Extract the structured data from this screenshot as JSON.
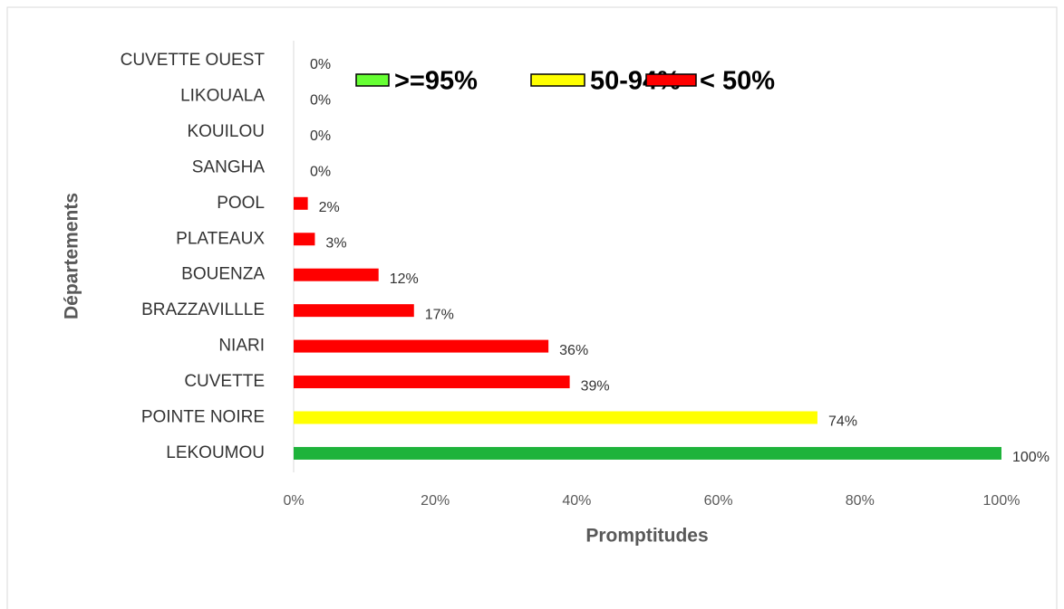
{
  "chart_data": {
    "type": "hbar",
    "categories": [
      "CUVETTE OUEST",
      "LIKOUALA",
      "KOUILOU",
      "SANGHA",
      "POOL",
      "PLATEAUX",
      "BOUENZA",
      "BRAZZAVILLLE",
      "NIARI",
      "CUVETTE",
      "POINTE NOIRE",
      "LEKOUMOU"
    ],
    "values": [
      0,
      0,
      0,
      0,
      2,
      3,
      12,
      17,
      36,
      39,
      74,
      100
    ],
    "value_labels": [
      "0%",
      "0%",
      "0%",
      "0%",
      "2%",
      "3%",
      "12%",
      "17%",
      "36%",
      "39%",
      "74%",
      "100%"
    ],
    "colors": [
      "#ff0000",
      "#ff0000",
      "#ff0000",
      "#ff0000",
      "#ff0000",
      "#ff0000",
      "#ff0000",
      "#ff0000",
      "#ff0000",
      "#ff0000",
      "#ffff00",
      "#1eb33b"
    ],
    "xlim": [
      0,
      100
    ],
    "xticks": [
      {
        "value": 0,
        "label": "0%"
      },
      {
        "value": 20,
        "label": "20%"
      },
      {
        "value": 40,
        "label": "40%"
      },
      {
        "value": 60,
        "label": "60%"
      },
      {
        "value": 80,
        "label": "80%"
      },
      {
        "value": 100,
        "label": "100%"
      }
    ],
    "x_label": "Promptitudes",
    "y_label": "Départements",
    "legend": [
      {
        "label": ">=95%",
        "color": "#66ff33"
      },
      {
        "label": "50-94%",
        "color": "#ffff00"
      },
      {
        "label": "< 50%",
        "color": "#ff0000"
      }
    ]
  }
}
